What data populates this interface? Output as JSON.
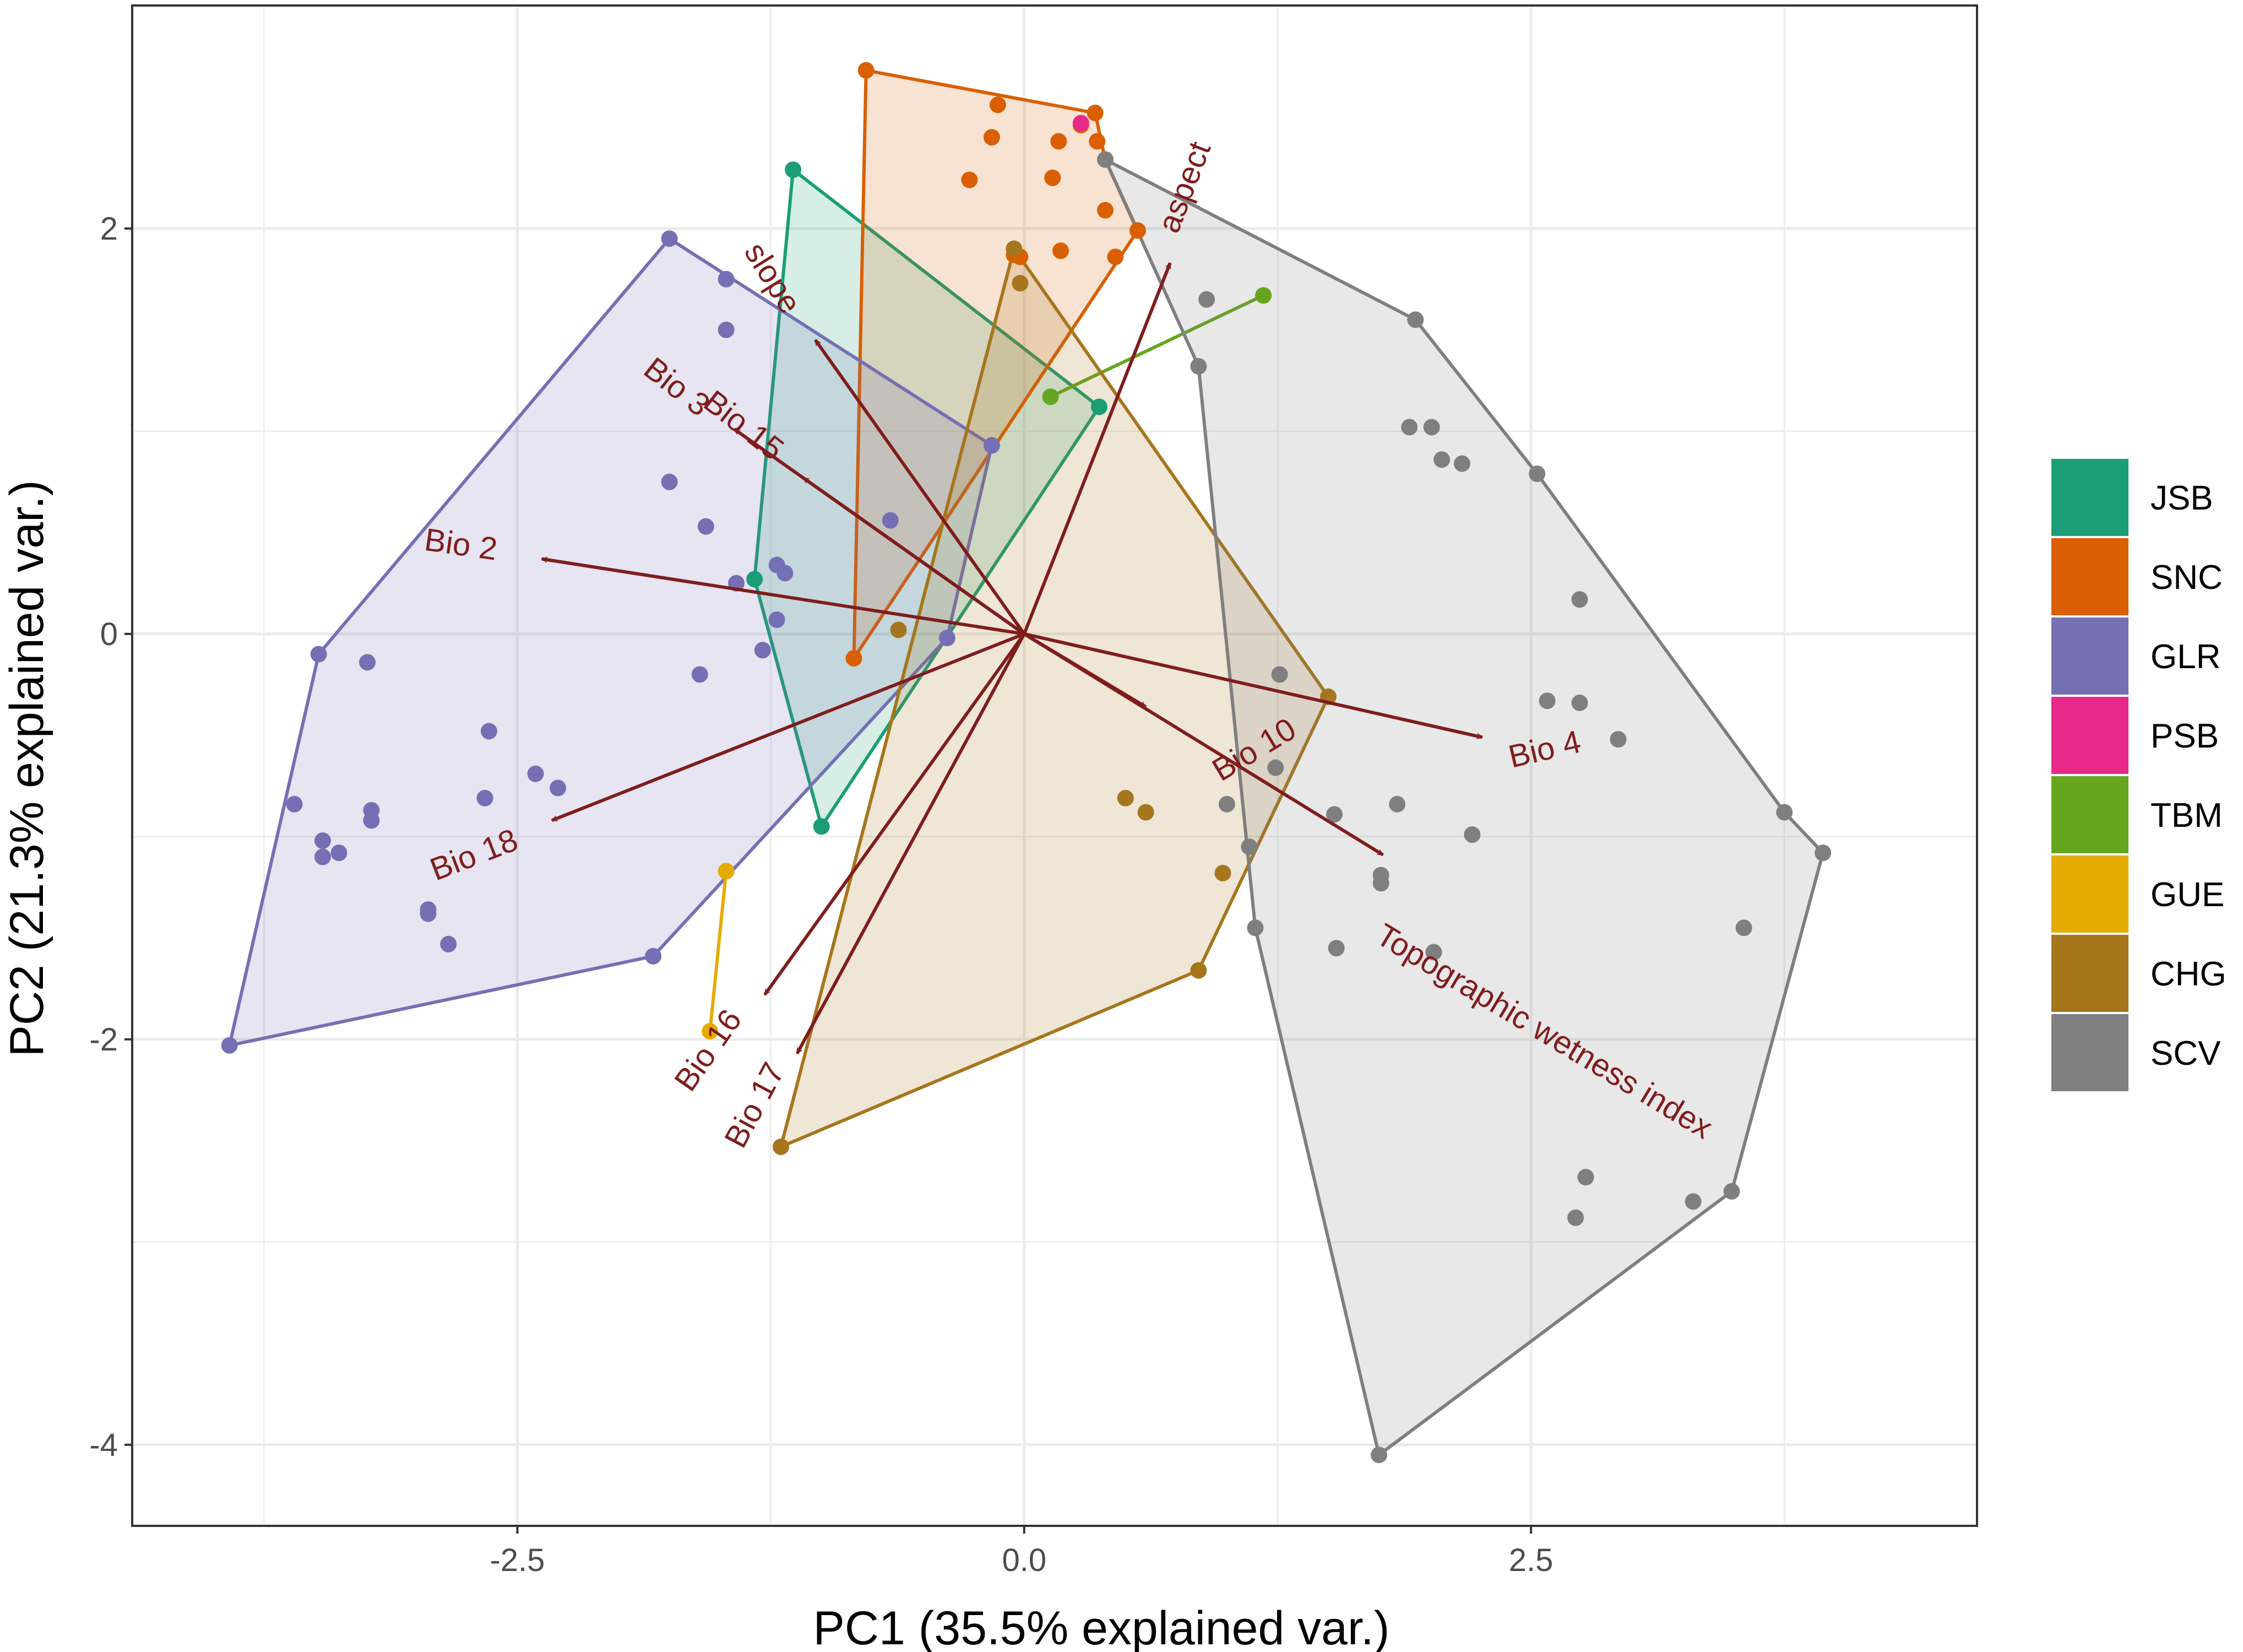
{
  "chart_data": {
    "type": "scatter",
    "subtype": "pca-biplot",
    "title": "",
    "xlabel": "PC1 (35.5% explained var.)",
    "ylabel": "PC2 (21.3% explained var.)",
    "xlim": [
      -4.4,
      4.7
    ],
    "ylim": [
      -4.4,
      3.1
    ],
    "x_ticks": [
      -2.5,
      0.0,
      2.5
    ],
    "x_tick_labels": [
      "-2.5",
      "0.0",
      "2.5"
    ],
    "y_ticks": [
      -4,
      -2,
      0,
      2
    ],
    "y_tick_labels": [
      "-4",
      "-2",
      "0",
      "2"
    ],
    "grid": true,
    "legend_position": "right",
    "series": [
      {
        "name": "JSB",
        "color": "#1b9e77",
        "points": [
          [
            -1.14,
            2.29
          ],
          [
            -1.0,
            -0.95
          ],
          [
            0.37,
            1.12
          ],
          [
            -1.33,
            0.27
          ]
        ],
        "hull": [
          [
            -1.14,
            2.29
          ],
          [
            0.37,
            1.12
          ],
          [
            -1.0,
            -0.95
          ],
          [
            -1.33,
            0.27
          ]
        ]
      },
      {
        "name": "SNC",
        "color": "#d95f02",
        "points": [
          [
            -0.78,
            2.78
          ],
          [
            -0.13,
            2.61
          ],
          [
            0.35,
            2.57
          ],
          [
            0.28,
            2.51
          ],
          [
            -0.16,
            2.45
          ],
          [
            0.17,
            2.43
          ],
          [
            0.36,
            2.43
          ],
          [
            -0.27,
            2.24
          ],
          [
            0.14,
            2.25
          ],
          [
            0.4,
            2.34
          ],
          [
            0.4,
            2.09
          ],
          [
            0.56,
            1.99
          ],
          [
            0.18,
            1.89
          ],
          [
            0.45,
            1.86
          ],
          [
            -0.05,
            1.87
          ],
          [
            -0.02,
            1.86
          ],
          [
            -0.84,
            -0.12
          ]
        ],
        "hull": [
          [
            -0.78,
            2.78
          ],
          [
            0.35,
            2.57
          ],
          [
            0.4,
            2.34
          ],
          [
            0.56,
            1.99
          ],
          [
            -0.84,
            -0.12
          ]
        ]
      },
      {
        "name": "GLR",
        "color": "#7570b3",
        "points": [
          [
            -1.75,
            1.95
          ],
          [
            -1.47,
            1.75
          ],
          [
            -1.47,
            1.5
          ],
          [
            -1.75,
            0.75
          ],
          [
            -1.57,
            0.53
          ],
          [
            -1.22,
            0.34
          ],
          [
            -1.18,
            0.3
          ],
          [
            -1.42,
            0.25
          ],
          [
            -1.22,
            0.07
          ],
          [
            -1.29,
            -0.08
          ],
          [
            -1.6,
            -0.2
          ],
          [
            -0.16,
            0.93
          ],
          [
            -0.66,
            0.56
          ],
          [
            -0.38,
            -0.02
          ],
          [
            -3.48,
            -0.1
          ],
          [
            -3.24,
            -0.14
          ],
          [
            -2.64,
            -0.48
          ],
          [
            -2.41,
            -0.69
          ],
          [
            -2.3,
            -0.76
          ],
          [
            -2.66,
            -0.81
          ],
          [
            -3.6,
            -0.84
          ],
          [
            -3.46,
            -1.02
          ],
          [
            -3.22,
            -0.87
          ],
          [
            -3.22,
            -0.92
          ],
          [
            -3.46,
            -1.1
          ],
          [
            -3.38,
            -1.08
          ],
          [
            -2.94,
            -1.38
          ],
          [
            -2.94,
            -1.36
          ],
          [
            -2.84,
            -1.53
          ],
          [
            -1.83,
            -1.59
          ],
          [
            -3.92,
            -2.03
          ]
        ],
        "hull": [
          [
            -1.75,
            1.95
          ],
          [
            -0.16,
            0.93
          ],
          [
            -0.38,
            -0.02
          ],
          [
            -1.83,
            -1.59
          ],
          [
            -3.92,
            -2.03
          ],
          [
            -3.48,
            -0.1
          ]
        ]
      },
      {
        "name": "PSB",
        "color": "#e7298a",
        "points": [
          [
            0.28,
            2.52
          ]
        ],
        "hull": []
      },
      {
        "name": "TBM",
        "color": "#66a61e",
        "points": [
          [
            0.13,
            1.17
          ],
          [
            1.18,
            1.67
          ]
        ],
        "hull": [
          [
            0.13,
            1.17
          ],
          [
            1.18,
            1.67
          ]
        ]
      },
      {
        "name": "GUE",
        "color": "#e6ab02",
        "points": [
          [
            -1.47,
            -1.17
          ],
          [
            -1.55,
            -1.96
          ]
        ],
        "hull": [
          [
            -1.47,
            -1.17
          ],
          [
            -1.55,
            -1.96
          ]
        ]
      },
      {
        "name": "CHG",
        "color": "#a6761d",
        "points": [
          [
            -0.05,
            1.9
          ],
          [
            -0.02,
            1.73
          ],
          [
            -0.62,
            0.02
          ],
          [
            1.5,
            -0.31
          ],
          [
            0.5,
            -0.81
          ],
          [
            0.6,
            -0.88
          ],
          [
            0.98,
            -1.18
          ],
          [
            0.86,
            -1.66
          ],
          [
            -1.2,
            -2.53
          ]
        ],
        "hull": [
          [
            -0.05,
            1.9
          ],
          [
            1.5,
            -0.31
          ],
          [
            0.86,
            -1.66
          ],
          [
            -1.2,
            -2.53
          ]
        ]
      },
      {
        "name": "SCV",
        "color": "#7f7f7f",
        "points": [
          [
            0.4,
            2.34
          ],
          [
            0.9,
            1.65
          ],
          [
            0.86,
            1.32
          ],
          [
            1.93,
            1.55
          ],
          [
            1.9,
            1.02
          ],
          [
            2.01,
            1.02
          ],
          [
            2.06,
            0.86
          ],
          [
            2.16,
            0.84
          ],
          [
            2.53,
            0.79
          ],
          [
            2.74,
            0.17
          ],
          [
            1.26,
            -0.2
          ],
          [
            2.58,
            -0.33
          ],
          [
            2.74,
            -0.34
          ],
          [
            2.93,
            -0.52
          ],
          [
            1.24,
            -0.66
          ],
          [
            1.0,
            -0.84
          ],
          [
            1.53,
            -0.89
          ],
          [
            1.84,
            -0.84
          ],
          [
            2.21,
            -0.99
          ],
          [
            1.76,
            -1.19
          ],
          [
            1.76,
            -1.23
          ],
          [
            1.11,
            -1.05
          ],
          [
            1.14,
            -1.45
          ],
          [
            1.54,
            -1.55
          ],
          [
            2.02,
            -1.57
          ],
          [
            3.75,
            -0.88
          ],
          [
            3.94,
            -1.08
          ],
          [
            3.55,
            -1.45
          ],
          [
            2.77,
            -2.68
          ],
          [
            2.72,
            -2.88
          ],
          [
            3.3,
            -2.8
          ],
          [
            3.49,
            -2.75
          ],
          [
            1.75,
            -4.05
          ]
        ],
        "hull": [
          [
            0.4,
            2.34
          ],
          [
            1.93,
            1.55
          ],
          [
            2.53,
            0.79
          ],
          [
            3.75,
            -0.88
          ],
          [
            3.94,
            -1.08
          ],
          [
            3.49,
            -2.75
          ],
          [
            1.75,
            -4.05
          ],
          [
            1.14,
            -1.45
          ],
          [
            0.86,
            1.32
          ]
        ]
      }
    ],
    "loadings": [
      {
        "label": "slope",
        "x": -1.03,
        "y": 1.45,
        "label_x": -1.25,
        "label_y": 1.75,
        "angle": 58
      },
      {
        "label": "Bio 3",
        "x": -1.43,
        "y": 1.01,
        "label_x": -1.72,
        "label_y": 1.21,
        "angle": 38
      },
      {
        "label": "Bio 15",
        "x": -1.09,
        "y": 0.77,
        "label_x": -1.39,
        "label_y": 1.02,
        "angle": 38
      },
      {
        "label": "Bio 2",
        "x": -2.38,
        "y": 0.37,
        "label_x": -2.78,
        "label_y": 0.43,
        "angle": 8
      },
      {
        "label": "Bio 18",
        "x": -2.33,
        "y": -0.92,
        "label_x": -2.71,
        "label_y": -1.1,
        "angle": -21
      },
      {
        "label": "Bio 16",
        "x": -1.28,
        "y": -1.78,
        "label_x": -1.55,
        "label_y": -2.06,
        "angle": -55
      },
      {
        "label": "Bio 17",
        "x": -1.12,
        "y": -2.07,
        "label_x": -1.32,
        "label_y": -2.33,
        "angle": -62
      },
      {
        "label": "aspect",
        "x": 0.72,
        "y": 1.83,
        "label_x": 0.8,
        "label_y": 2.2,
        "angle": -69
      },
      {
        "label": "Bio 10",
        "x": 0.6,
        "y": -0.36,
        "label_x": 1.14,
        "label_y": -0.58,
        "angle": -31
      },
      {
        "label": "Bio 4",
        "x": 2.26,
        "y": -0.51,
        "label_x": 2.57,
        "label_y": -0.58,
        "angle": -13
      },
      {
        "label": "Topographic wetness index",
        "x": 1.77,
        "y": -1.09,
        "label_x": 2.56,
        "label_y": -1.97,
        "angle": 31
      }
    ]
  },
  "legend": {
    "items": [
      {
        "label": "JSB",
        "color": "#1b9e77"
      },
      {
        "label": "SNC",
        "color": "#d95f02"
      },
      {
        "label": "GLR",
        "color": "#7570b3"
      },
      {
        "label": "PSB",
        "color": "#e7298a"
      },
      {
        "label": "TBM",
        "color": "#66a61e"
      },
      {
        "label": "GUE",
        "color": "#e6ab02"
      },
      {
        "label": "CHG",
        "color": "#a6761d"
      },
      {
        "label": "SCV",
        "color": "#7f7f7f"
      }
    ]
  },
  "colors": {
    "loading_arrow": "#7f1d1d",
    "grid": "#ebebeb",
    "panel_border": "#333333"
  }
}
